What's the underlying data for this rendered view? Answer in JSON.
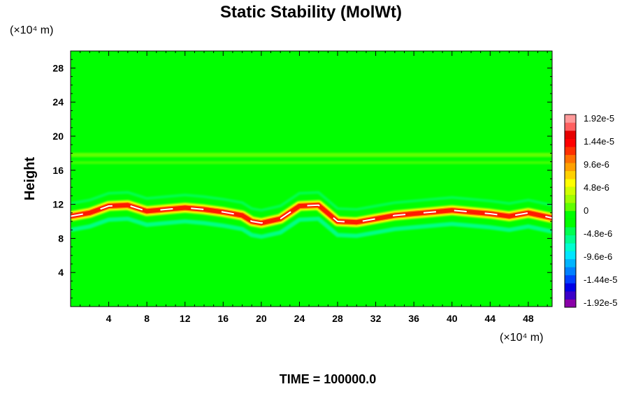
{
  "chart_data": {
    "type": "heatmap",
    "title": "Static Stability (MolWt)",
    "ylabel": "Height",
    "y_unit": "(×10⁴ m)",
    "x_unit": "(×10⁴ m)",
    "xlim": [
      0,
      50.5
    ],
    "ylim": [
      0,
      30
    ],
    "x_ticks": [
      "4",
      "8",
      "12",
      "16",
      "20",
      "24",
      "28",
      "32",
      "36",
      "40",
      "44",
      "48"
    ],
    "y_ticks": [
      "4",
      "8",
      "12",
      "16",
      "20",
      "24",
      "28"
    ],
    "colorbar": {
      "range": [
        -1.92e-05,
        1.92e-05
      ],
      "tick_labels": [
        "1.92e-5",
        "1.44e-5",
        "9.6e-6",
        "4.8e-6",
        "0",
        "-4.8e-6",
        "-9.6e-6",
        "-1.44e-5",
        "-1.92e-5"
      ]
    },
    "stable_layer": {
      "description_free": true,
      "x": [
        0,
        2,
        4,
        6,
        8,
        10,
        12,
        14,
        16,
        17,
        18,
        19,
        20,
        22,
        24,
        26,
        28,
        30,
        32,
        34,
        36,
        38,
        40,
        42,
        44,
        46,
        48,
        50.5
      ],
      "height": [
        10.6,
        11.0,
        11.8,
        11.9,
        11.2,
        11.4,
        11.6,
        11.4,
        11.1,
        10.9,
        10.7,
        10.0,
        9.8,
        10.3,
        11.8,
        11.9,
        10.0,
        9.9,
        10.3,
        10.7,
        10.9,
        11.1,
        11.3,
        11.1,
        10.9,
        10.6,
        11.0,
        10.4
      ]
    },
    "upper_band_height": 17.8
  },
  "footer": {
    "time_label": "TIME = 100000.0"
  }
}
